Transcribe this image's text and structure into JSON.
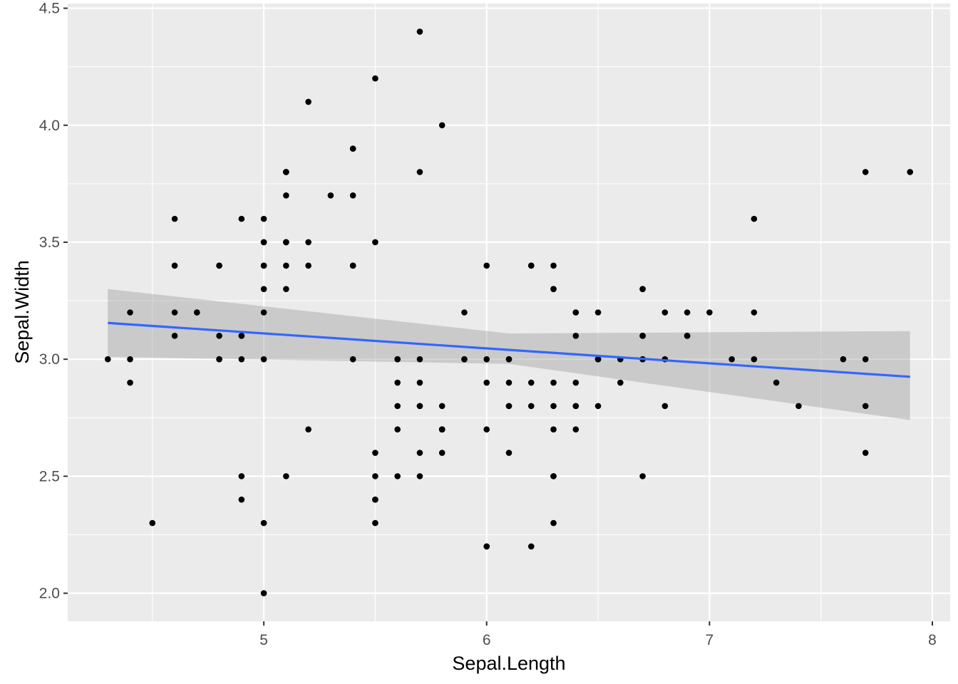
{
  "chart_data": {
    "type": "scatter",
    "title": "",
    "xlabel": "Sepal.Length",
    "ylabel": "Sepal.Width",
    "xlim": [
      4.12,
      8.08
    ],
    "ylim": [
      1.88,
      4.52
    ],
    "x_ticks": [
      5,
      6,
      7,
      8
    ],
    "x_tick_labels": [
      "5",
      "6",
      "7",
      "8"
    ],
    "y_ticks": [
      2.0,
      2.5,
      3.0,
      3.5,
      4.0,
      4.5
    ],
    "y_tick_labels": [
      "2.0",
      "2.5",
      "3.0",
      "3.5",
      "4.0",
      "4.5"
    ],
    "grid": true,
    "colors": {
      "panel_background": "#ebebeb",
      "grid_line": "#ffffff",
      "point": "#000000",
      "smooth_line": "#3366ff",
      "confidence_band": "#999999"
    },
    "points": [
      {
        "x": 5.1,
        "y": 3.5
      },
      {
        "x": 4.9,
        "y": 3.0
      },
      {
        "x": 4.7,
        "y": 3.2
      },
      {
        "x": 4.6,
        "y": 3.1
      },
      {
        "x": 5.0,
        "y": 3.6
      },
      {
        "x": 5.4,
        "y": 3.9
      },
      {
        "x": 4.6,
        "y": 3.4
      },
      {
        "x": 5.0,
        "y": 3.4
      },
      {
        "x": 4.4,
        "y": 2.9
      },
      {
        "x": 4.9,
        "y": 3.1
      },
      {
        "x": 5.4,
        "y": 3.7
      },
      {
        "x": 4.8,
        "y": 3.4
      },
      {
        "x": 4.8,
        "y": 3.0
      },
      {
        "x": 4.3,
        "y": 3.0
      },
      {
        "x": 5.8,
        "y": 4.0
      },
      {
        "x": 5.7,
        "y": 4.4
      },
      {
        "x": 5.4,
        "y": 3.9
      },
      {
        "x": 5.1,
        "y": 3.5
      },
      {
        "x": 5.7,
        "y": 3.8
      },
      {
        "x": 5.1,
        "y": 3.8
      },
      {
        "x": 5.4,
        "y": 3.4
      },
      {
        "x": 5.1,
        "y": 3.7
      },
      {
        "x": 4.6,
        "y": 3.6
      },
      {
        "x": 5.1,
        "y": 3.3
      },
      {
        "x": 4.8,
        "y": 3.4
      },
      {
        "x": 5.0,
        "y": 3.0
      },
      {
        "x": 5.0,
        "y": 3.4
      },
      {
        "x": 5.2,
        "y": 3.5
      },
      {
        "x": 5.2,
        "y": 3.4
      },
      {
        "x": 4.7,
        "y": 3.2
      },
      {
        "x": 4.8,
        "y": 3.1
      },
      {
        "x": 5.4,
        "y": 3.4
      },
      {
        "x": 5.2,
        "y": 4.1
      },
      {
        "x": 5.5,
        "y": 4.2
      },
      {
        "x": 4.9,
        "y": 3.1
      },
      {
        "x": 5.0,
        "y": 3.2
      },
      {
        "x": 5.5,
        "y": 3.5
      },
      {
        "x": 4.9,
        "y": 3.6
      },
      {
        "x": 4.4,
        "y": 3.0
      },
      {
        "x": 5.1,
        "y": 3.4
      },
      {
        "x": 5.0,
        "y": 3.5
      },
      {
        "x": 4.5,
        "y": 2.3
      },
      {
        "x": 4.4,
        "y": 3.2
      },
      {
        "x": 5.0,
        "y": 3.5
      },
      {
        "x": 5.1,
        "y": 3.8
      },
      {
        "x": 4.8,
        "y": 3.0
      },
      {
        "x": 5.1,
        "y": 3.8
      },
      {
        "x": 4.6,
        "y": 3.2
      },
      {
        "x": 5.3,
        "y": 3.7
      },
      {
        "x": 5.0,
        "y": 3.3
      },
      {
        "x": 7.0,
        "y": 3.2
      },
      {
        "x": 6.4,
        "y": 3.2
      },
      {
        "x": 6.9,
        "y": 3.1
      },
      {
        "x": 5.5,
        "y": 2.3
      },
      {
        "x": 6.5,
        "y": 2.8
      },
      {
        "x": 5.7,
        "y": 2.8
      },
      {
        "x": 6.3,
        "y": 3.3
      },
      {
        "x": 4.9,
        "y": 2.4
      },
      {
        "x": 6.6,
        "y": 2.9
      },
      {
        "x": 5.2,
        "y": 2.7
      },
      {
        "x": 5.0,
        "y": 2.0
      },
      {
        "x": 5.9,
        "y": 3.0
      },
      {
        "x": 6.0,
        "y": 2.2
      },
      {
        "x": 6.1,
        "y": 2.9
      },
      {
        "x": 5.6,
        "y": 2.9
      },
      {
        "x": 6.7,
        "y": 3.1
      },
      {
        "x": 5.6,
        "y": 3.0
      },
      {
        "x": 5.8,
        "y": 2.7
      },
      {
        "x": 6.2,
        "y": 2.2
      },
      {
        "x": 5.6,
        "y": 2.5
      },
      {
        "x": 5.9,
        "y": 3.2
      },
      {
        "x": 6.1,
        "y": 2.8
      },
      {
        "x": 6.3,
        "y": 2.5
      },
      {
        "x": 6.1,
        "y": 2.8
      },
      {
        "x": 6.4,
        "y": 2.9
      },
      {
        "x": 6.6,
        "y": 3.0
      },
      {
        "x": 6.8,
        "y": 2.8
      },
      {
        "x": 6.7,
        "y": 3.0
      },
      {
        "x": 6.0,
        "y": 2.9
      },
      {
        "x": 5.7,
        "y": 2.6
      },
      {
        "x": 5.5,
        "y": 2.4
      },
      {
        "x": 5.5,
        "y": 2.4
      },
      {
        "x": 5.8,
        "y": 2.7
      },
      {
        "x": 6.0,
        "y": 2.7
      },
      {
        "x": 5.4,
        "y": 3.0
      },
      {
        "x": 6.0,
        "y": 3.4
      },
      {
        "x": 6.7,
        "y": 3.1
      },
      {
        "x": 6.3,
        "y": 2.3
      },
      {
        "x": 5.6,
        "y": 3.0
      },
      {
        "x": 5.5,
        "y": 2.5
      },
      {
        "x": 5.5,
        "y": 2.6
      },
      {
        "x": 6.1,
        "y": 3.0
      },
      {
        "x": 5.8,
        "y": 2.6
      },
      {
        "x": 5.0,
        "y": 2.3
      },
      {
        "x": 5.6,
        "y": 2.7
      },
      {
        "x": 5.7,
        "y": 3.0
      },
      {
        "x": 5.7,
        "y": 2.9
      },
      {
        "x": 6.2,
        "y": 2.9
      },
      {
        "x": 5.1,
        "y": 2.5
      },
      {
        "x": 5.7,
        "y": 2.8
      },
      {
        "x": 6.3,
        "y": 3.3
      },
      {
        "x": 5.8,
        "y": 2.7
      },
      {
        "x": 7.1,
        "y": 3.0
      },
      {
        "x": 6.3,
        "y": 2.9
      },
      {
        "x": 6.5,
        "y": 3.0
      },
      {
        "x": 7.6,
        "y": 3.0
      },
      {
        "x": 4.9,
        "y": 2.5
      },
      {
        "x": 7.3,
        "y": 2.9
      },
      {
        "x": 6.7,
        "y": 2.5
      },
      {
        "x": 7.2,
        "y": 3.6
      },
      {
        "x": 6.5,
        "y": 3.2
      },
      {
        "x": 6.4,
        "y": 2.7
      },
      {
        "x": 6.8,
        "y": 3.0
      },
      {
        "x": 5.7,
        "y": 2.5
      },
      {
        "x": 5.8,
        "y": 2.8
      },
      {
        "x": 6.4,
        "y": 3.2
      },
      {
        "x": 6.5,
        "y": 3.0
      },
      {
        "x": 7.7,
        "y": 3.8
      },
      {
        "x": 7.7,
        "y": 2.6
      },
      {
        "x": 6.0,
        "y": 2.2
      },
      {
        "x": 6.9,
        "y": 3.2
      },
      {
        "x": 5.6,
        "y": 2.8
      },
      {
        "x": 7.7,
        "y": 2.8
      },
      {
        "x": 6.3,
        "y": 2.7
      },
      {
        "x": 6.7,
        "y": 3.3
      },
      {
        "x": 7.2,
        "y": 3.2
      },
      {
        "x": 6.2,
        "y": 2.8
      },
      {
        "x": 6.1,
        "y": 3.0
      },
      {
        "x": 6.4,
        "y": 2.8
      },
      {
        "x": 7.2,
        "y": 3.0
      },
      {
        "x": 7.4,
        "y": 2.8
      },
      {
        "x": 7.9,
        "y": 3.8
      },
      {
        "x": 6.4,
        "y": 2.8
      },
      {
        "x": 6.3,
        "y": 2.8
      },
      {
        "x": 6.1,
        "y": 2.6
      },
      {
        "x": 7.7,
        "y": 3.0
      },
      {
        "x": 6.3,
        "y": 3.4
      },
      {
        "x": 6.4,
        "y": 3.1
      },
      {
        "x": 6.0,
        "y": 3.0
      },
      {
        "x": 6.9,
        "y": 3.1
      },
      {
        "x": 6.7,
        "y": 3.1
      },
      {
        "x": 6.9,
        "y": 3.1
      },
      {
        "x": 5.8,
        "y": 2.7
      },
      {
        "x": 6.8,
        "y": 3.2
      },
      {
        "x": 6.7,
        "y": 3.3
      },
      {
        "x": 6.7,
        "y": 3.0
      },
      {
        "x": 6.3,
        "y": 2.5
      },
      {
        "x": 6.5,
        "y": 3.0
      },
      {
        "x": 6.2,
        "y": 3.4
      },
      {
        "x": 5.9,
        "y": 3.0
      },
      {
        "x": 6.2,
        "y": 3.4
      },
      {
        "x": 5.1,
        "y": 3.5
      }
    ],
    "smooth": {
      "method": "lm",
      "line": [
        {
          "x": 4.3,
          "y": 3.155
        },
        {
          "x": 7.9,
          "y": 2.925
        }
      ],
      "band": [
        {
          "x": 4.3,
          "lower": 3.01,
          "upper": 3.3
        },
        {
          "x": 6.1,
          "lower": 2.98,
          "upper": 3.11
        },
        {
          "x": 7.9,
          "lower": 2.74,
          "upper": 3.12
        }
      ]
    }
  }
}
